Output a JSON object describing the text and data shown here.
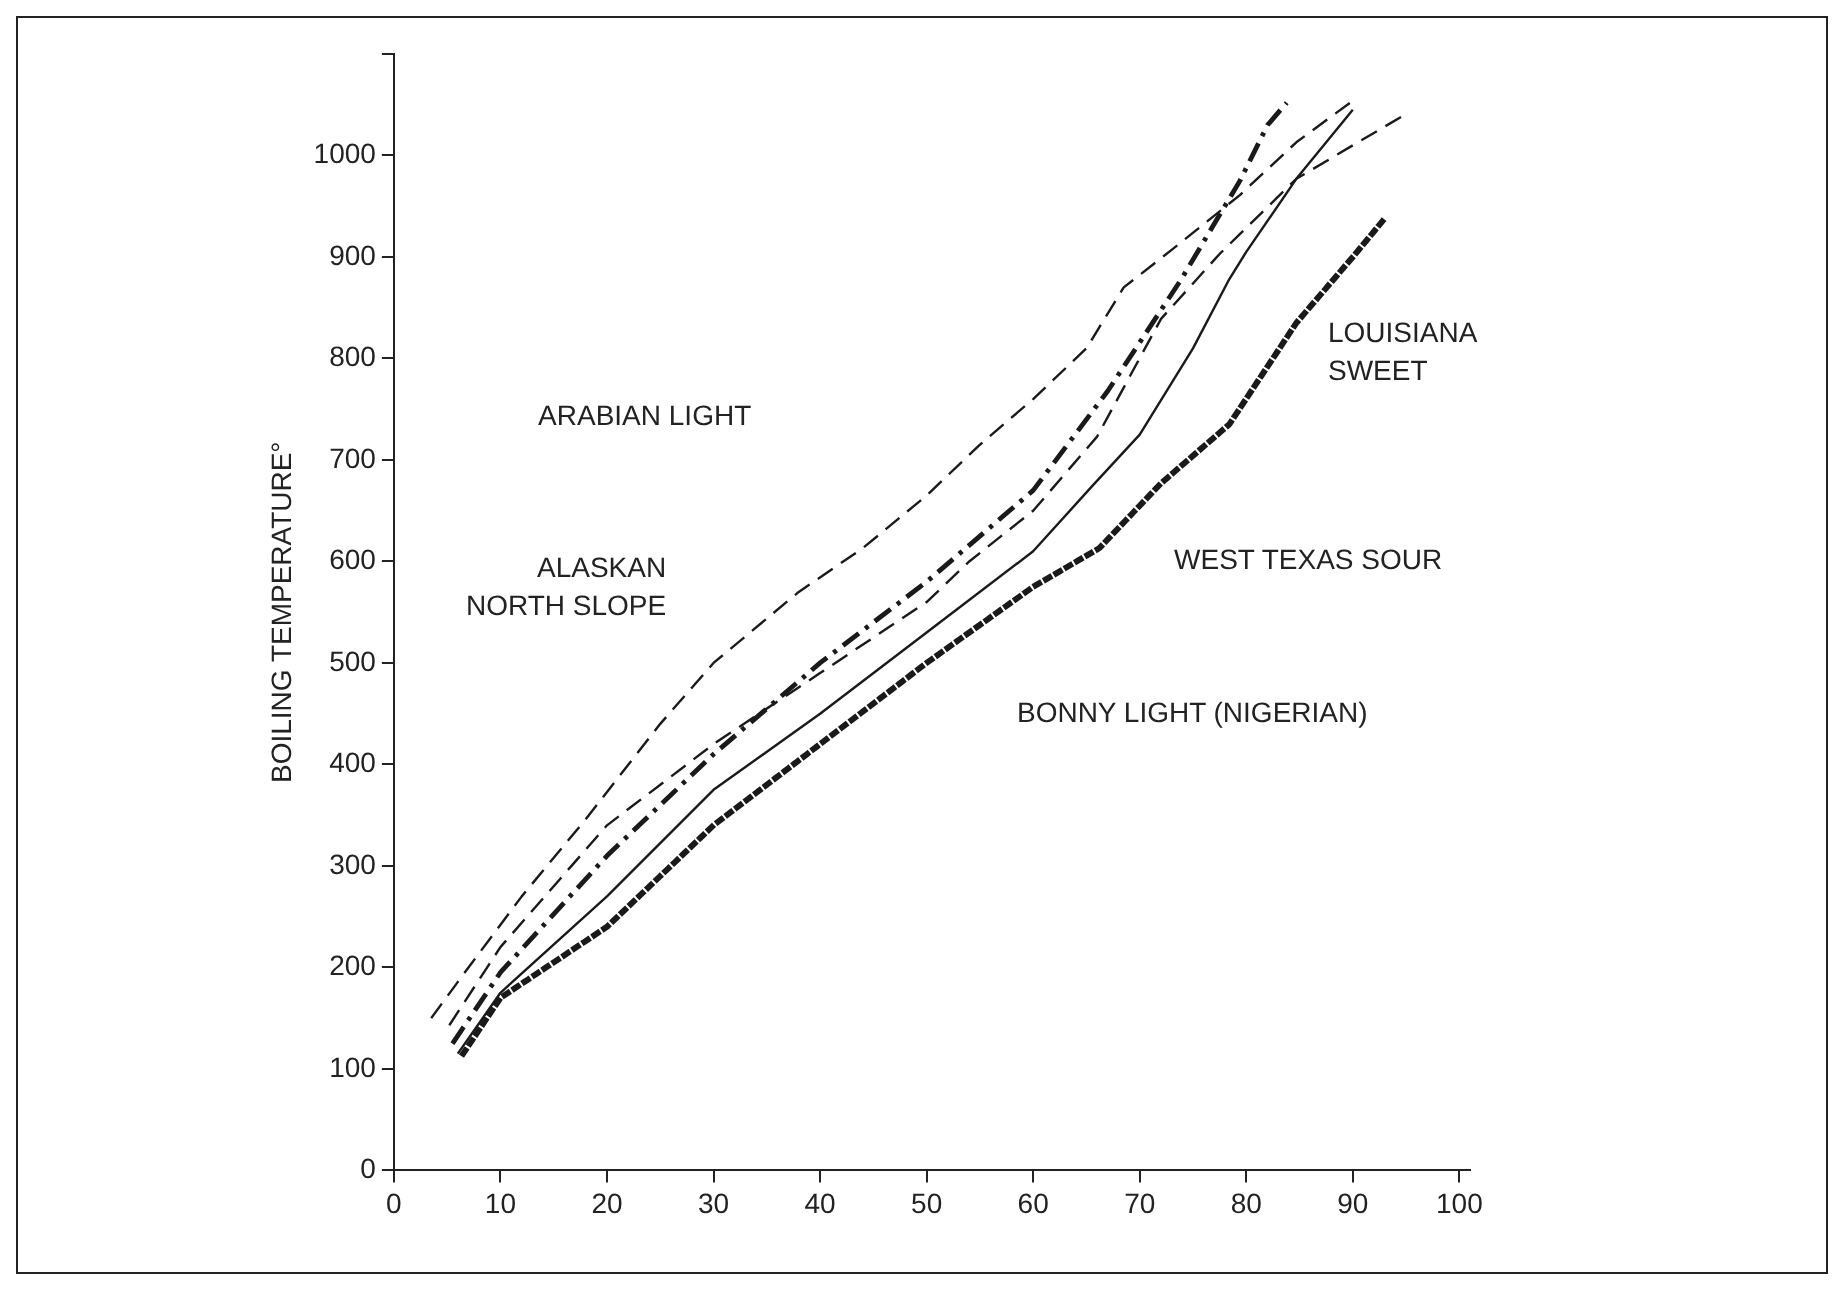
{
  "chart_data": {
    "type": "line",
    "ylabel": "BOILING TEMPERATURE°",
    "xlim": [
      0,
      101
    ],
    "xticks": [
      0,
      10,
      20,
      30,
      40,
      50,
      60,
      70,
      80,
      90,
      100
    ],
    "ylim": [
      0,
      1100
    ],
    "yticks": [
      0,
      100,
      200,
      300,
      400,
      500,
      600,
      700,
      800,
      900,
      1000,
      {
        "value": 1100,
        "label": null
      }
    ],
    "grid": false,
    "legend": false,
    "marker": "none",
    "series": [
      {
        "color": "#1a1a1a",
        "line_style": "dashed",
        "x": [
          3.5,
          7,
          12,
          18,
          25,
          30,
          38,
          44,
          50,
          55,
          60,
          65,
          68.5,
          73,
          79.4,
          84.7,
          90
        ],
        "values": [
          150,
          200,
          270,
          346,
          440,
          500,
          570,
          613,
          665,
          715,
          760,
          810,
          870,
          907,
          961,
          1013,
          1054
        ]
      },
      {
        "color": "#1a1a1a",
        "line_style": "dashed",
        "x": [
          5.2,
          10,
          20,
          30,
          40,
          50,
          54,
          60,
          66,
          72,
          77.5,
          84.7,
          90,
          94.7
        ],
        "values": [
          143,
          220,
          340,
          420,
          490,
          560,
          600,
          650,
          723,
          839,
          903,
          977,
          1010,
          1039
        ]
      },
      {
        "color": "#1a1a1a",
        "line_style": "dashdot",
        "x": [
          5.5,
          10,
          20,
          30,
          40,
          50,
          60,
          67,
          73.9,
          79.4,
          82,
          83.8
        ],
        "values": [
          125,
          195,
          310,
          410,
          500,
          580,
          670,
          768,
          878,
          975,
          1030,
          1052
        ]
      },
      {
        "color": "#1a1a1a",
        "line_style": "solid",
        "x": [
          6,
          10,
          20,
          30,
          40,
          50,
          60,
          65.6,
          70,
          75,
          78.4,
          80,
          84.7,
          90
        ],
        "values": [
          115,
          175,
          270,
          375,
          450,
          530,
          610,
          675,
          725,
          810,
          878,
          905,
          977,
          1045
        ]
      },
      {
        "color": "#1a1a1a",
        "line_style": "dotted",
        "x": [
          6.5,
          10,
          20,
          30,
          40,
          50,
          60,
          66.2,
          72,
          78.4,
          84.7,
          90,
          93
        ],
        "values": [
          115,
          170,
          240,
          340,
          420,
          500,
          575,
          613,
          677,
          735,
          835,
          900,
          938
        ]
      }
    ],
    "annotations": [
      "ARABIAN LIGHT",
      "ALASKAN\nNORTH SLOPE",
      "LOUISIANA\nSWEET",
      "WEST TEXAS SOUR",
      "BONNY LIGHT (NIGERIAN)"
    ]
  }
}
